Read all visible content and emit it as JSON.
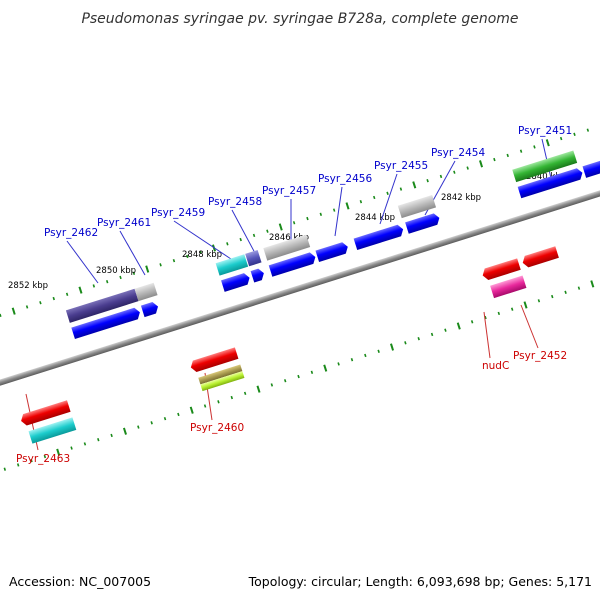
{
  "title": "Pseudomonas syringae pv. syringae B728a, complete genome",
  "footer": {
    "accession": "Accession: NC_007005",
    "summary": "Topology: circular; Length: 6,093,698 bp; Genes: 5,171"
  },
  "colors": {
    "backbone": "#888888",
    "ticks": "#1a8a1a",
    "label_forward": "#0000cc",
    "label_reverse": "#cc0000",
    "label_line_forward": "#3333cc",
    "label_line_reverse": "#cc3333"
  },
  "tick_labels": [
    "2852 kbp",
    "2850 kbp",
    "2848 kbp",
    "2846 kbp",
    "2844 kbp",
    "2842 kbp",
    "2840 kbp"
  ],
  "genes_forward": [
    "Psyr_2462",
    "Psyr_2461",
    "Psyr_2459",
    "Psyr_2458",
    "Psyr_2457",
    "Psyr_2456",
    "Psyr_2455",
    "Psyr_2454",
    "Psyr_2451"
  ],
  "genes_reverse": [
    "Psyr_2463",
    "Psyr_2460",
    "nudC",
    "Psyr_2452"
  ]
}
